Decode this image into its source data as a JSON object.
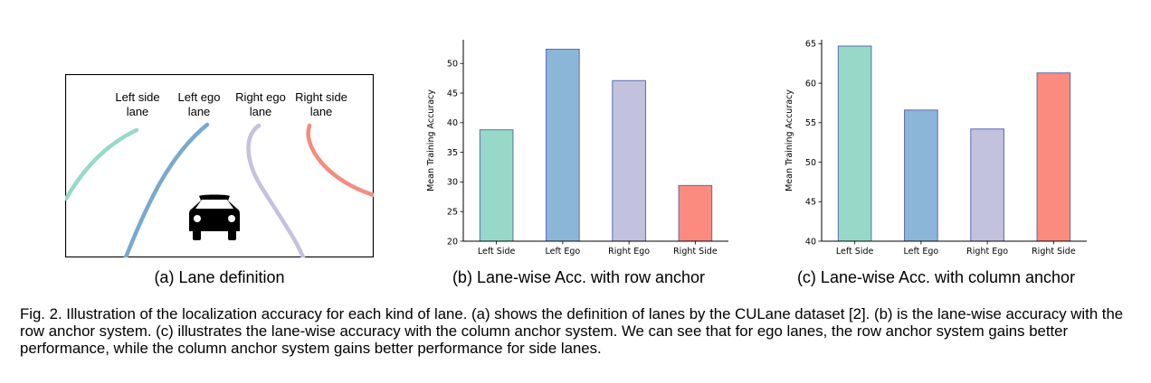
{
  "panel_a": {
    "caption": "(a) Lane definition",
    "lanes": [
      {
        "label_line1": "Left side",
        "label_line2": "lane",
        "color": "#97d9c8"
      },
      {
        "label_line1": "Left ego",
        "label_line2": "lane",
        "color": "#7aa9cf"
      },
      {
        "label_line1": "Right ego",
        "label_line2": "lane",
        "color": "#c4c2de"
      },
      {
        "label_line1": "Right side",
        "label_line2": "lane",
        "color": "#f58b7e"
      }
    ],
    "icon": "car-icon"
  },
  "panel_b_caption": "(b) Lane-wise Acc. with row anchor",
  "panel_c_caption": "(c) Lane-wise Acc. with column anchor",
  "caption": "Fig. 2. Illustration of the localization accuracy for each kind of lane. (a) shows the definition of lanes by the CULane dataset [2]. (b) is the lane-wise accuracy with the row anchor system. (c) illustrates the lane-wise accuracy with the column anchor system. We can see that for ego lanes, the row anchor system gains better performance, while the column anchor system gains better performance for side lanes.",
  "chart_data": [
    {
      "type": "bar",
      "title": "",
      "xlabel": "",
      "ylabel": "Mean Training Accuracy",
      "categories": [
        "Left Side",
        "Left Ego",
        "Right Ego",
        "Right Side"
      ],
      "values": [
        38.8,
        52.4,
        47.1,
        29.4
      ],
      "colors": [
        "#97d9c8",
        "#8cb6d8",
        "#c2c1de",
        "#fa8b7e"
      ],
      "ylim": [
        20,
        54
      ],
      "yticks": [
        20,
        25,
        30,
        35,
        40,
        45,
        50
      ]
    },
    {
      "type": "bar",
      "title": "",
      "xlabel": "",
      "ylabel": "Mean Training Accuracy",
      "categories": [
        "Left Side",
        "Left Ego",
        "Right Ego",
        "Right Side"
      ],
      "values": [
        64.7,
        56.6,
        54.2,
        61.3
      ],
      "colors": [
        "#97d9c8",
        "#8cb6d8",
        "#c2c1de",
        "#fa8b7e"
      ],
      "ylim": [
        40,
        65.5
      ],
      "yticks": [
        40,
        45,
        50,
        55,
        60,
        65
      ]
    }
  ]
}
